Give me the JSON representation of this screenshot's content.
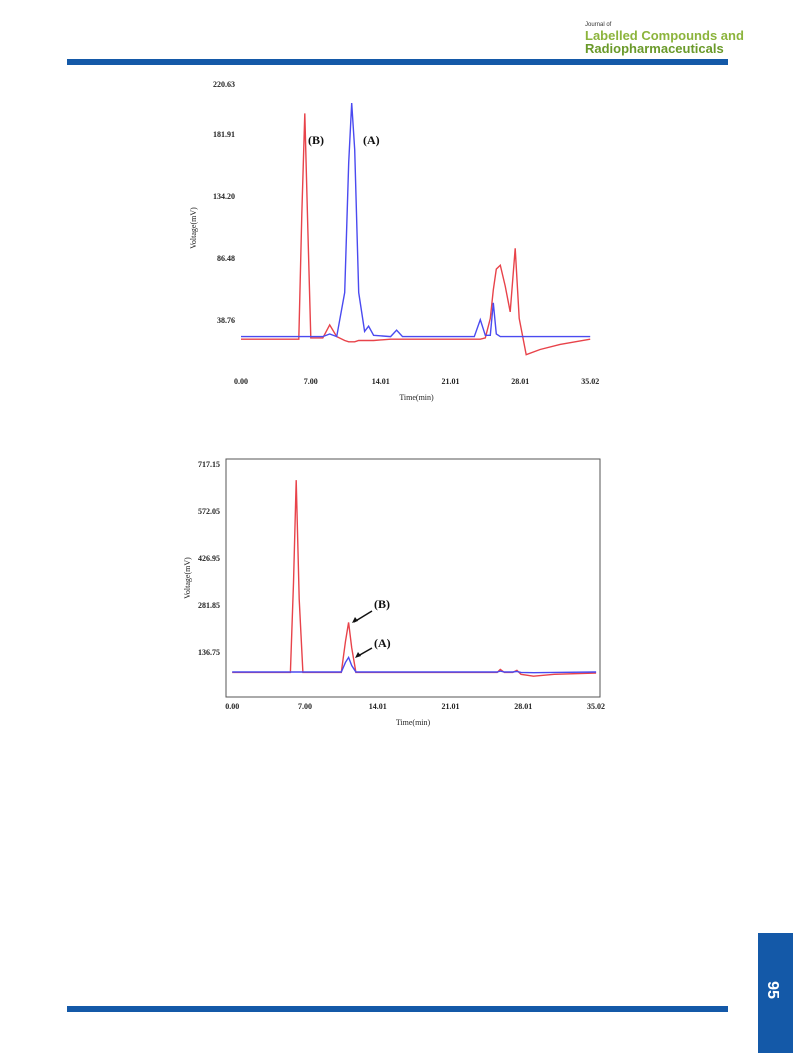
{
  "header": {
    "journal_of": "Journal of",
    "line1": "Labelled Compounds and",
    "line2": "Radiopharmaceuticals"
  },
  "page_number": "95",
  "chart_data": [
    {
      "type": "line",
      "x_label": "Time(min)",
      "y_label": "Voltage(mV)",
      "xlim": [
        0,
        35.2
      ],
      "ylim": [
        -1.3,
        220.63
      ],
      "xticks": [
        {
          "value": 0,
          "label": "0.00"
        },
        {
          "value": 7,
          "label": "7.00"
        },
        14.01,
        21.01,
        28.01,
        35.02
      ],
      "yticks": [
        38.76,
        86.48,
        {
          "value": 134.2,
          "label": "134.20"
        },
        181.91,
        220.63
      ],
      "grid": false,
      "annotations": [
        "(B)",
        "(A)"
      ],
      "x": [
        0,
        5.8,
        6.1,
        6.4,
        6.7,
        7.0,
        8.2,
        8.9,
        9.6,
        10.4,
        10.8,
        11.1,
        11.4,
        11.8,
        12.4,
        12.8,
        13.3,
        15.0,
        15.6,
        16.2,
        23.4,
        24.0,
        24.5,
        25.0,
        25.3,
        25.6,
        26.0,
        26.5,
        27.0,
        27.5,
        27.9,
        28.6,
        30.0,
        32.0,
        35.02
      ],
      "series": [
        {
          "name": "(B)",
          "color": "#e8434a",
          "values": [
            24,
            24,
            120,
            198,
            110,
            25,
            25,
            35,
            26,
            23,
            22,
            22,
            22,
            23,
            23,
            23,
            23,
            24,
            24,
            24,
            24,
            24,
            25,
            40,
            62,
            78,
            81,
            65,
            45,
            94,
            40,
            12,
            16,
            20,
            24
          ]
        },
        {
          "name": "(A)",
          "color": "#4a4af0",
          "values": [
            26,
            26,
            26,
            26,
            26,
            26,
            26,
            28,
            26,
            60,
            160,
            206,
            170,
            60,
            30,
            34,
            27,
            26,
            31,
            26,
            26,
            39,
            27,
            27,
            52,
            28,
            26,
            26,
            26,
            26,
            26,
            26,
            26,
            26,
            26
          ]
        }
      ]
    },
    {
      "type": "line",
      "x_label": "Time(min)",
      "y_label": "Voltage(mV)",
      "xlim": [
        -0.6,
        35.4
      ],
      "ylim": [
        -2,
        732
      ],
      "xticks": [
        {
          "value": 0,
          "label": "0.00"
        },
        {
          "value": 7,
          "label": "7.00"
        },
        14.01,
        21.01,
        28.01,
        35.02
      ],
      "yticks": [
        136.75,
        281.85,
        426.95,
        572.05,
        717.15
      ],
      "grid": false,
      "annotations": [
        "(B)",
        "(A)"
      ],
      "x": [
        0,
        5.6,
        5.9,
        6.16,
        6.45,
        6.8,
        10.5,
        10.9,
        11.2,
        11.5,
        11.9,
        25.5,
        25.8,
        26.2,
        27.0,
        27.4,
        27.8,
        29.0,
        31.0,
        35.02
      ],
      "series": [
        {
          "name": "(B)",
          "color": "#e8434a",
          "values": [
            74,
            74,
            350,
            667,
            300,
            74,
            74,
            170,
            228,
            150,
            74,
            74,
            83,
            74,
            74,
            80,
            68,
            62,
            68,
            72
          ]
        },
        {
          "name": "(A)",
          "color": "#4a4af0",
          "values": [
            75,
            75,
            75,
            75,
            75,
            75,
            75,
            105,
            120,
            95,
            75,
            75,
            78,
            75,
            75,
            77,
            74,
            73,
            74,
            75
          ]
        }
      ]
    }
  ]
}
